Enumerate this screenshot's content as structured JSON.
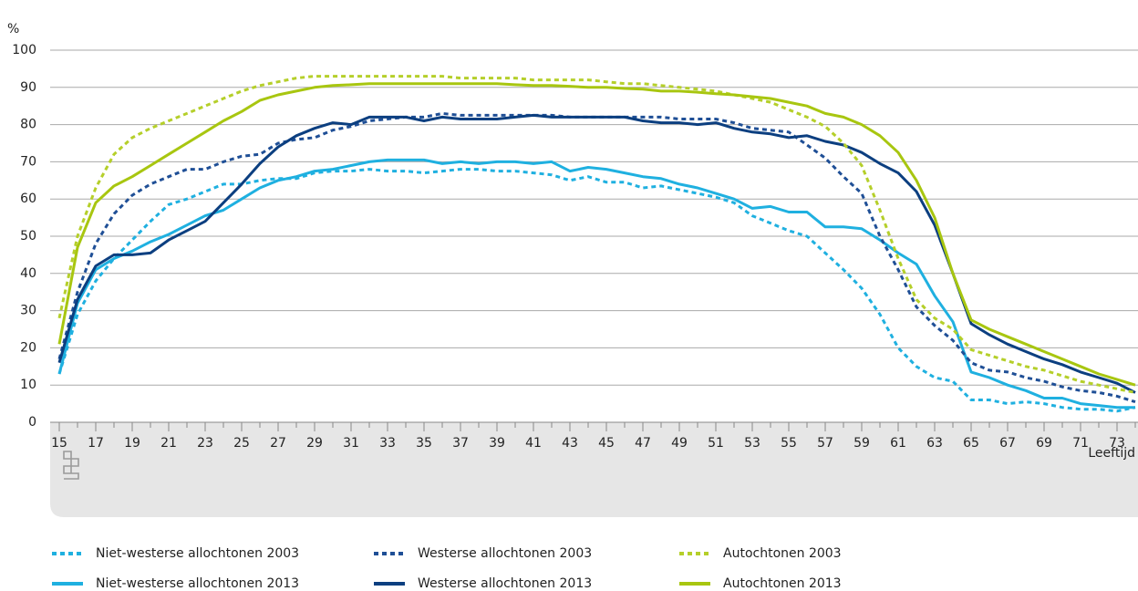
{
  "chart_data": {
    "type": "line",
    "y_unit": "%",
    "x_label": "Leeftijd",
    "x": [
      15,
      16,
      17,
      18,
      19,
      20,
      21,
      22,
      23,
      24,
      25,
      26,
      27,
      28,
      29,
      30,
      31,
      32,
      33,
      34,
      35,
      36,
      37,
      38,
      39,
      40,
      41,
      42,
      43,
      44,
      45,
      46,
      47,
      48,
      49,
      50,
      51,
      52,
      53,
      54,
      55,
      56,
      57,
      58,
      59,
      60,
      61,
      62,
      63,
      64,
      65,
      66,
      67,
      68,
      69,
      70,
      71,
      72,
      73,
      74
    ],
    "xlim": [
      15,
      74
    ],
    "xticks": [
      15,
      17,
      19,
      21,
      23,
      25,
      27,
      29,
      31,
      33,
      35,
      37,
      39,
      41,
      43,
      45,
      47,
      49,
      51,
      53,
      55,
      57,
      59,
      61,
      63,
      65,
      67,
      69,
      71,
      73
    ],
    "ylim": [
      0,
      100
    ],
    "yticks": [
      0,
      10,
      20,
      30,
      40,
      50,
      60,
      70,
      80,
      90,
      100
    ],
    "grid": true,
    "series": [
      {
        "name": "Niet-westerse allochtonen 2003",
        "color": "#1fb0e0",
        "style": "dashed",
        "values": [
          13,
          29,
          38,
          44,
          49,
          54,
          58.5,
          60,
          62,
          64,
          64,
          65,
          65.5,
          65.5,
          67,
          67.5,
          67.5,
          68,
          67.5,
          67.5,
          67,
          67.5,
          68,
          68,
          67.5,
          67.5,
          67,
          66.5,
          65,
          66,
          64.5,
          64.5,
          63,
          63.5,
          62.5,
          61.5,
          60.5,
          59,
          55.5,
          53.5,
          51.5,
          50,
          45.5,
          41,
          36,
          29,
          20,
          15,
          12,
          11,
          6,
          6,
          5,
          5.5,
          5,
          4,
          3.5,
          3.5,
          3,
          4
        ]
      },
      {
        "name": "Niet-westerse allochtonen 2013",
        "color": "#1fb0e0",
        "style": "solid",
        "values": [
          13,
          32,
          41,
          44,
          46,
          48.5,
          50.5,
          53,
          55.5,
          57,
          60,
          63,
          65,
          66,
          67.5,
          68,
          69,
          70,
          70.5,
          70.5,
          70.5,
          69.5,
          70,
          69.5,
          70,
          70,
          69.5,
          70,
          67.5,
          68.5,
          68,
          67,
          66,
          65.5,
          64,
          63,
          61.5,
          60,
          57.5,
          58,
          56.5,
          56.5,
          52.5,
          52.5,
          52,
          49,
          45.5,
          42.5,
          34,
          27,
          13.5,
          12,
          10,
          8.5,
          6.5,
          6.5,
          5,
          4.5,
          4,
          4
        ]
      },
      {
        "name": "Westerse allochtonen 2003",
        "color": "#1f4f96",
        "style": "dashed",
        "values": [
          17,
          35,
          48,
          56,
          61,
          64,
          66,
          68,
          68,
          70,
          71.5,
          72,
          75,
          76,
          76.5,
          78.5,
          79.5,
          81,
          81.5,
          82,
          82,
          83,
          82.5,
          82.5,
          82.5,
          82.5,
          82.5,
          82.5,
          82,
          82,
          82,
          82,
          82,
          82,
          81.5,
          81.5,
          81.5,
          80.5,
          79,
          78.5,
          78,
          74.5,
          71,
          66,
          61.5,
          50,
          41,
          31,
          26,
          22,
          16,
          14,
          13.5,
          12,
          11,
          9.5,
          8.5,
          8,
          7,
          5.5
        ]
      },
      {
        "name": "Westerse allochtonen 2013",
        "color": "#0c3f80",
        "style": "solid",
        "values": [
          16,
          33,
          42,
          45,
          45,
          45.5,
          49,
          51.5,
          54,
          59,
          64,
          69.5,
          74,
          77,
          79,
          80.5,
          80,
          82,
          82,
          82,
          81,
          82,
          81.5,
          81.5,
          81.5,
          82,
          82.5,
          82,
          82,
          82,
          82,
          82,
          81,
          80.5,
          80.5,
          80,
          80.5,
          79,
          78,
          77.5,
          76.5,
          77,
          75.5,
          74.5,
          72.5,
          69.5,
          67,
          62,
          53,
          40,
          26.5,
          23.5,
          21,
          19,
          17,
          15.5,
          13.5,
          12,
          10.5,
          8
        ]
      },
      {
        "name": "Autochtonen 2003",
        "color": "#b5cf2a",
        "style": "dashed",
        "values": [
          28,
          50,
          63,
          72,
          76.5,
          79,
          81,
          83,
          85,
          87,
          89,
          90.5,
          91.5,
          92.5,
          93,
          93,
          93,
          93,
          93,
          93,
          93,
          93,
          92.5,
          92.5,
          92.5,
          92.5,
          92,
          92,
          92,
          92,
          91.5,
          91,
          91,
          90.5,
          90,
          89.5,
          89,
          88,
          87,
          86,
          84,
          82,
          79.5,
          75,
          69,
          57,
          44,
          33,
          28,
          25,
          19.5,
          18,
          16.5,
          15,
          14,
          12.5,
          11,
          10,
          9,
          8
        ]
      },
      {
        "name": "Autochtonen 2013",
        "color": "#a8c610",
        "style": "solid",
        "values": [
          21,
          47,
          59,
          63.5,
          66,
          69,
          72,
          75,
          78,
          81,
          83.5,
          86.5,
          88,
          89,
          90,
          90.5,
          90.7,
          91,
          91,
          91,
          91,
          91,
          91,
          91,
          91,
          90.7,
          90.5,
          90.5,
          90.3,
          90,
          90,
          89.7,
          89.5,
          89,
          89,
          88.7,
          88.3,
          88,
          87.5,
          87,
          86,
          85,
          83,
          82,
          80,
          77,
          72.5,
          65,
          55,
          40,
          27.5,
          25,
          23,
          21,
          19,
          17,
          15,
          13,
          11.5,
          10
        ]
      }
    ]
  }
}
